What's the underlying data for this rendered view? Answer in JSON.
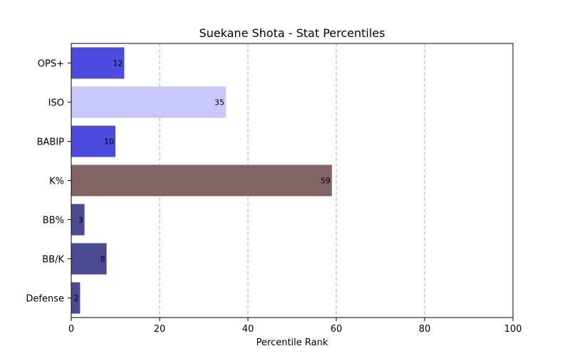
{
  "chart_data": {
    "type": "bar",
    "orientation": "horizontal",
    "title": "Suekane Shota - Stat Percentiles",
    "xlabel": "Percentile Rank",
    "ylabel": "",
    "xlim": [
      0,
      100
    ],
    "xticks": [
      0,
      20,
      40,
      60,
      80,
      100
    ],
    "grid": "x-dashed",
    "categories": [
      "OPS+",
      "ISO",
      "BABIP",
      "K%",
      "BB%",
      "BB/K",
      "Defense"
    ],
    "values": [
      12,
      35,
      10,
      59,
      3,
      8,
      2
    ],
    "colors": [
      "#4b4bdf",
      "#c9c7ff",
      "#4b4bdf",
      "#826464",
      "#4b4b93",
      "#4b4b93",
      "#4b4b93"
    ]
  }
}
